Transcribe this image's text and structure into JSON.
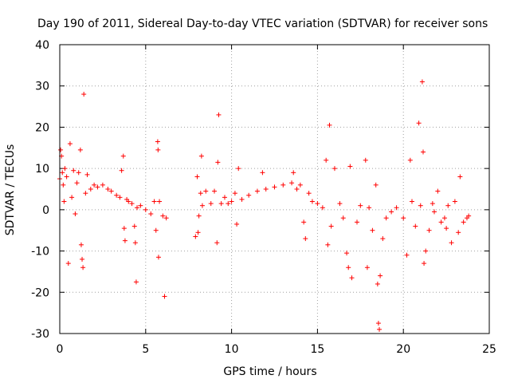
{
  "chart_data": {
    "type": "scatter",
    "title": "Day 190 of 2011, Sidereal Day-to-day VTEC variation (SDTVAR) for receiver sons",
    "xlabel": "GPS time / hours",
    "ylabel": "SDTVAR / TECUs",
    "xlim": [
      0,
      25
    ],
    "ylim": [
      -30,
      40
    ],
    "xticks": [
      "0",
      "5",
      "10",
      "15",
      "20",
      "25"
    ],
    "yticks": [
      "-30",
      "-20",
      "-10",
      "0",
      "10",
      "20",
      "30",
      "40"
    ],
    "grid": true,
    "marker": "+",
    "color": "#ff0000",
    "series": [
      {
        "name": "sons",
        "points": [
          [
            0.0,
            7.5
          ],
          [
            0.05,
            14.5
          ],
          [
            0.1,
            13.0
          ],
          [
            0.15,
            9.0
          ],
          [
            0.2,
            6.0
          ],
          [
            0.25,
            2.0
          ],
          [
            0.3,
            10.0
          ],
          [
            0.4,
            8.0
          ],
          [
            0.5,
            -13.0
          ],
          [
            0.6,
            16.0
          ],
          [
            0.7,
            3.0
          ],
          [
            0.8,
            9.5
          ],
          [
            0.9,
            -1.0
          ],
          [
            1.0,
            6.5
          ],
          [
            1.1,
            9.0
          ],
          [
            1.2,
            14.5
          ],
          [
            1.25,
            -8.5
          ],
          [
            1.3,
            -12.0
          ],
          [
            1.35,
            -14.0
          ],
          [
            1.4,
            28.0
          ],
          [
            1.5,
            4.0
          ],
          [
            1.6,
            8.5
          ],
          [
            1.8,
            5.0
          ],
          [
            2.0,
            6.0
          ],
          [
            2.2,
            5.5
          ],
          [
            2.5,
            6.0
          ],
          [
            2.8,
            5.0
          ],
          [
            3.0,
            4.5
          ],
          [
            3.3,
            3.5
          ],
          [
            3.5,
            3.0
          ],
          [
            3.6,
            9.5
          ],
          [
            3.7,
            13.0
          ],
          [
            3.75,
            -4.5
          ],
          [
            3.8,
            -7.5
          ],
          [
            3.9,
            2.5
          ],
          [
            4.0,
            2.0
          ],
          [
            4.2,
            1.5
          ],
          [
            4.35,
            -4.0
          ],
          [
            4.4,
            -8.0
          ],
          [
            4.45,
            -17.5
          ],
          [
            4.5,
            0.5
          ],
          [
            4.7,
            1.0
          ],
          [
            5.0,
            0.0
          ],
          [
            5.3,
            -1.0
          ],
          [
            5.5,
            2.0
          ],
          [
            5.6,
            -5.0
          ],
          [
            5.7,
            16.5
          ],
          [
            5.72,
            14.5
          ],
          [
            5.75,
            -11.5
          ],
          [
            5.8,
            2.0
          ],
          [
            6.0,
            -1.5
          ],
          [
            6.1,
            -21.0
          ],
          [
            6.2,
            -2.0
          ],
          [
            7.9,
            -6.5
          ],
          [
            8.0,
            8.0
          ],
          [
            8.05,
            -5.5
          ],
          [
            8.1,
            -1.5
          ],
          [
            8.2,
            4.0
          ],
          [
            8.25,
            13.0
          ],
          [
            8.3,
            1.0
          ],
          [
            8.5,
            4.5
          ],
          [
            8.8,
            1.5
          ],
          [
            9.0,
            4.5
          ],
          [
            9.15,
            -8.0
          ],
          [
            9.2,
            11.5
          ],
          [
            9.25,
            23.0
          ],
          [
            9.4,
            1.5
          ],
          [
            9.6,
            3.0
          ],
          [
            9.8,
            1.5
          ],
          [
            10.0,
            2.0
          ],
          [
            10.2,
            4.0
          ],
          [
            10.3,
            -3.5
          ],
          [
            10.4,
            10.0
          ],
          [
            10.6,
            2.5
          ],
          [
            11.0,
            3.5
          ],
          [
            11.5,
            4.5
          ],
          [
            11.8,
            9.0
          ],
          [
            12.0,
            5.0
          ],
          [
            12.5,
            5.5
          ],
          [
            13.0,
            6.0
          ],
          [
            13.5,
            6.5
          ],
          [
            13.6,
            9.0
          ],
          [
            13.8,
            5.0
          ],
          [
            14.0,
            6.0
          ],
          [
            14.2,
            -3.0
          ],
          [
            14.3,
            -7.0
          ],
          [
            14.5,
            4.0
          ],
          [
            14.7,
            2.0
          ],
          [
            15.0,
            1.5
          ],
          [
            15.3,
            0.5
          ],
          [
            15.5,
            12.0
          ],
          [
            15.6,
            -8.5
          ],
          [
            15.7,
            20.5
          ],
          [
            15.8,
            -4.0
          ],
          [
            16.0,
            10.0
          ],
          [
            16.3,
            1.5
          ],
          [
            16.5,
            -2.0
          ],
          [
            16.7,
            -10.5
          ],
          [
            16.8,
            -14.0
          ],
          [
            16.9,
            10.5
          ],
          [
            17.0,
            -16.5
          ],
          [
            17.3,
            -3.0
          ],
          [
            17.5,
            1.0
          ],
          [
            17.8,
            12.0
          ],
          [
            17.9,
            -14.0
          ],
          [
            18.0,
            0.5
          ],
          [
            18.2,
            -5.0
          ],
          [
            18.4,
            6.0
          ],
          [
            18.5,
            -18.0
          ],
          [
            18.55,
            -27.5
          ],
          [
            18.6,
            -29.0
          ],
          [
            18.65,
            -16.0
          ],
          [
            18.8,
            -7.0
          ],
          [
            19.0,
            -2.0
          ],
          [
            19.3,
            -0.5
          ],
          [
            19.6,
            0.5
          ],
          [
            20.0,
            -2.0
          ],
          [
            20.2,
            -11.0
          ],
          [
            20.4,
            12.0
          ],
          [
            20.5,
            2.0
          ],
          [
            20.7,
            -4.0
          ],
          [
            20.9,
            21.0
          ],
          [
            21.0,
            1.0
          ],
          [
            21.1,
            31.0
          ],
          [
            21.15,
            14.0
          ],
          [
            21.2,
            -13.0
          ],
          [
            21.3,
            -10.0
          ],
          [
            21.5,
            -5.0
          ],
          [
            21.7,
            1.5
          ],
          [
            21.8,
            -0.5
          ],
          [
            22.0,
            4.5
          ],
          [
            22.2,
            -3.0
          ],
          [
            22.4,
            -2.0
          ],
          [
            22.5,
            -4.5
          ],
          [
            22.6,
            1.0
          ],
          [
            22.8,
            -8.0
          ],
          [
            23.0,
            2.0
          ],
          [
            23.2,
            -5.5
          ],
          [
            23.3,
            8.0
          ],
          [
            23.5,
            -3.0
          ],
          [
            23.7,
            -2.0
          ],
          [
            23.8,
            -1.5
          ]
        ]
      }
    ]
  }
}
